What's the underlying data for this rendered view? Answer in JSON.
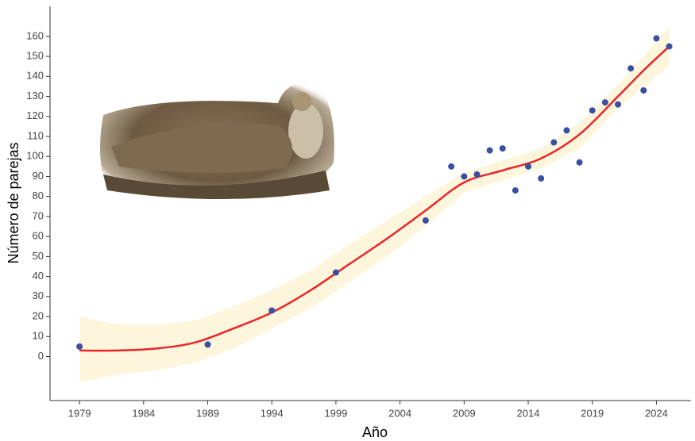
{
  "chart_data": {
    "type": "scatter",
    "xlabel": "Año",
    "ylabel": "Número de parejas",
    "x": [
      1979,
      1989,
      1994,
      1999,
      2006,
      2008,
      2009,
      2010,
      2011,
      2012,
      2013,
      2014,
      2015,
      2016,
      2017,
      2018,
      2019,
      2020,
      2021,
      2022,
      2023,
      2024,
      2025
    ],
    "values": [
      5,
      6,
      23,
      42,
      68,
      95,
      90,
      91,
      103,
      104,
      83,
      95,
      89,
      107,
      113,
      97,
      123,
      127,
      126,
      144,
      133,
      159,
      155
    ],
    "color": "#3a4fa0",
    "fit": {
      "x": [
        1979,
        1982,
        1985,
        1988,
        1991,
        1994,
        1997,
        2000,
        2003,
        2006,
        2009,
        2012,
        2015,
        2018,
        2021,
        2023,
        2025
      ],
      "values": [
        3,
        3,
        4,
        7,
        14,
        22,
        33,
        46,
        59,
        73,
        87,
        93,
        99,
        111,
        130,
        143,
        155
      ],
      "color": "#e8262a"
    },
    "band": {
      "x": [
        1979,
        1982,
        1985,
        1988,
        1991,
        1994,
        1997,
        2000,
        2003,
        2006,
        2009,
        2012,
        2015,
        2018,
        2021,
        2023,
        2025
      ],
      "upper": [
        20,
        16,
        16,
        18,
        25,
        33,
        43,
        56,
        68,
        80,
        92,
        98,
        104,
        117,
        136,
        150,
        165
      ],
      "lower": [
        -13,
        -9,
        -7,
        -3,
        4,
        14,
        24,
        37,
        50,
        65,
        82,
        88,
        94,
        104,
        124,
        135,
        145
      ],
      "color": "#fdf5dc"
    },
    "xlim": [
      1976.7,
      2026.7
    ],
    "ylim": [
      -22,
      175
    ],
    "xticks": [
      1979,
      1984,
      1989,
      1994,
      1999,
      2004,
      2009,
      2014,
      2019,
      2024
    ],
    "yticks": [
      0,
      10,
      20,
      30,
      40,
      50,
      60,
      70,
      80,
      90,
      100,
      110,
      120,
      130,
      140,
      150,
      160
    ],
    "grid": false
  }
}
